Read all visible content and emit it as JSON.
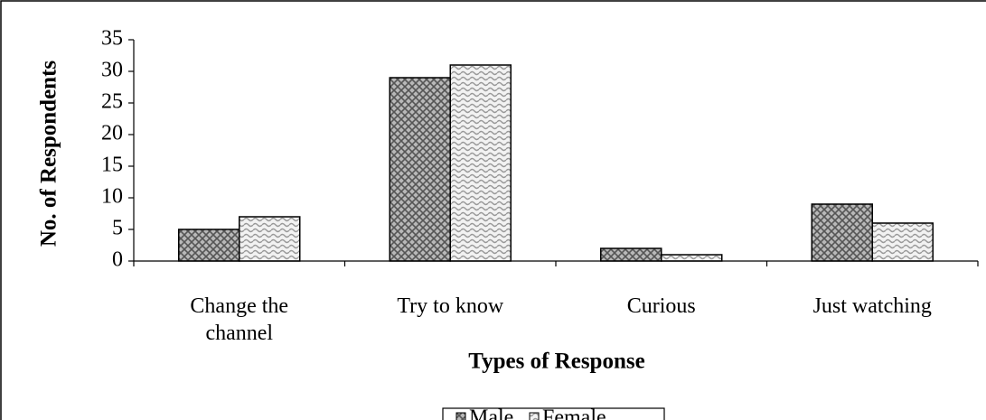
{
  "chart_data": {
    "type": "bar",
    "x_label": "Types of Response",
    "y_label": "No. of Respondents",
    "categories": [
      "Change the channel",
      "Try to know",
      "Curious",
      "Just watching"
    ],
    "series": [
      {
        "name": "Male",
        "color": "#a0a0a0",
        "values": [
          5,
          29,
          2,
          9
        ]
      },
      {
        "name": "Female",
        "color": "#d8d8d8",
        "values": [
          7,
          31,
          1,
          6
        ]
      }
    ],
    "ylim": [
      0,
      35
    ],
    "yticks": [
      0,
      5,
      10,
      15,
      20,
      25,
      30,
      35
    ],
    "grid": false,
    "legend": "bottom"
  }
}
